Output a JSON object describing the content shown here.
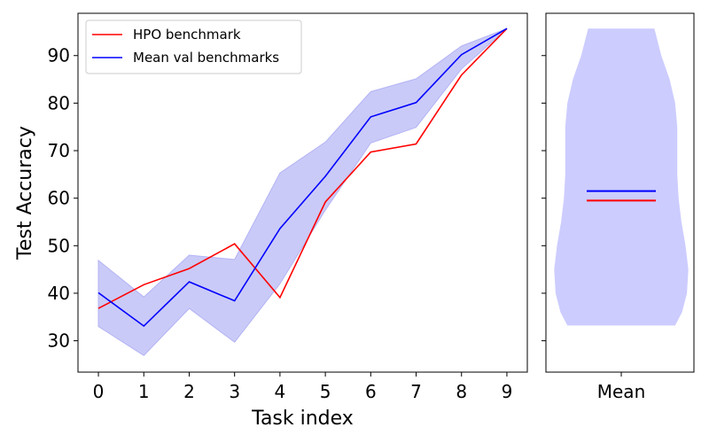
{
  "chart_data": [
    {
      "type": "line",
      "xlabel": "Task index",
      "ylabel": "Test Accuracy",
      "x": [
        0,
        1,
        2,
        3,
        4,
        5,
        6,
        7,
        8,
        9
      ],
      "xticks": [
        "0",
        "1",
        "2",
        "3",
        "4",
        "5",
        "6",
        "7",
        "8",
        "9"
      ],
      "yticks": [
        30,
        40,
        50,
        60,
        70,
        80,
        90
      ],
      "xlim": [
        -0.45,
        9.45
      ],
      "ylim": [
        23.4,
        98.9
      ],
      "legend_position": "top-left",
      "series": [
        {
          "name": "HPO benchmark",
          "color": "#ff0000",
          "values": [
            36.8,
            41.8,
            45.2,
            50.4,
            39.1,
            59.2,
            69.7,
            71.4,
            85.9,
            95.7
          ]
        },
        {
          "name": "Mean val benchmarks",
          "color": "#0000ff",
          "values": [
            40.1,
            33.1,
            42.4,
            38.4,
            53.6,
            64.6,
            77.1,
            80.1,
            90.2,
            95.7
          ],
          "band_lower": [
            33.0,
            26.9,
            36.8,
            29.7,
            42.0,
            57.5,
            71.6,
            74.9,
            87.2,
            95.7
          ],
          "band_upper": [
            46.9,
            39.2,
            48.0,
            47.1,
            65.3,
            71.8,
            82.4,
            85.1,
            92.0,
            95.7
          ],
          "band_color": "#b3b3f5"
        }
      ],
      "grid": false
    },
    {
      "type": "violin",
      "xticks": [
        "Mean"
      ],
      "ylim": [
        23.4,
        98.9
      ],
      "range": [
        33.2,
        95.7
      ],
      "fill_color": "#ccccff",
      "lines": [
        {
          "label": "Mean val benchmarks",
          "value": 61.5,
          "color": "#0000ff"
        },
        {
          "label": "HPO benchmark",
          "value": 59.5,
          "color": "#ff0000"
        }
      ],
      "density_profile": [
        [
          33.2,
          0.78
        ],
        [
          36.0,
          0.88
        ],
        [
          40.0,
          0.95
        ],
        [
          45.0,
          0.97
        ],
        [
          50.0,
          0.93
        ],
        [
          55.0,
          0.87
        ],
        [
          60.0,
          0.83
        ],
        [
          65.0,
          0.81
        ],
        [
          70.0,
          0.81
        ],
        [
          75.0,
          0.81
        ],
        [
          80.0,
          0.78
        ],
        [
          85.0,
          0.7
        ],
        [
          90.0,
          0.58
        ],
        [
          95.7,
          0.48
        ]
      ]
    }
  ]
}
